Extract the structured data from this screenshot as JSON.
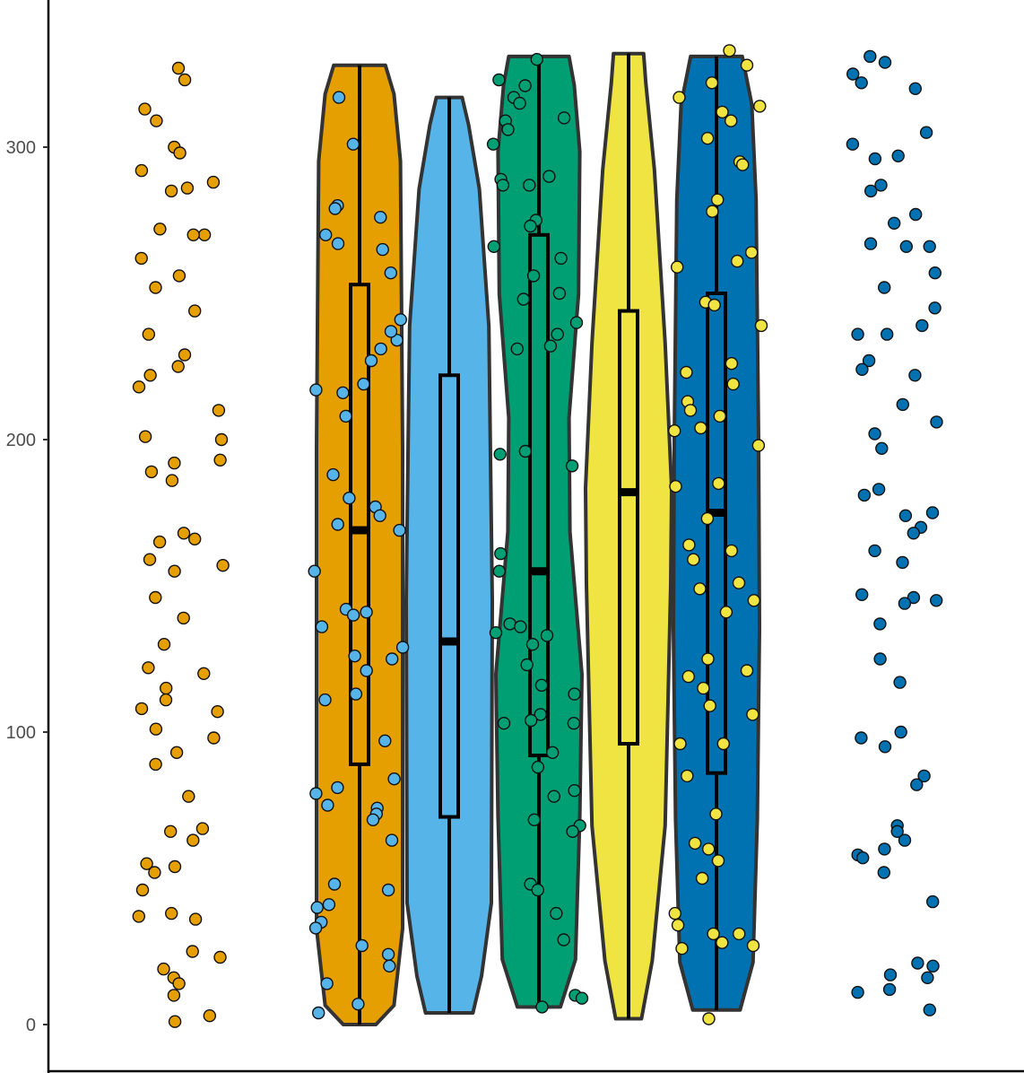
{
  "chart_data": {
    "type": "violin",
    "title": "",
    "xlabel": "",
    "ylabel": "",
    "ylim": [
      -7,
      350
    ],
    "y_ticks": [
      0,
      100,
      200,
      300
    ],
    "y_tick_labels": [
      "0",
      "100",
      "200",
      "300"
    ],
    "grid": false,
    "legend": "none",
    "colors": {
      "orange": "#E69F00",
      "skyblue": "#56B4E9",
      "green": "#009E73",
      "yellow": "#F0E442",
      "blue": "#0072B2",
      "outline": "#333333",
      "axis": "#000000"
    },
    "violins": [
      {
        "color": "orange",
        "min": 0,
        "max": 328,
        "q1": 89,
        "median": 169,
        "q3": 253
      },
      {
        "color": "skyblue",
        "min": 4,
        "max": 317,
        "q1": 71,
        "median": 131,
        "q3": 222
      },
      {
        "color": "green",
        "min": 6,
        "max": 331,
        "q1": 92,
        "median": 155,
        "q3": 270
      },
      {
        "color": "yellow",
        "min": 2,
        "max": 332,
        "q1": 96,
        "median": 182,
        "q3": 244
      },
      {
        "color": "blue",
        "min": 5,
        "max": 331,
        "q1": 86,
        "median": 175,
        "q3": 250
      }
    ],
    "point_groups": [
      {
        "color": "orange",
        "y": [
          327,
          323,
          313,
          309,
          300,
          298,
          292,
          288,
          286,
          285,
          272,
          270,
          270,
          262,
          256,
          252,
          244,
          236,
          229,
          225,
          222,
          218,
          210,
          200,
          201,
          192,
          193,
          189,
          186,
          168,
          166,
          165,
          159,
          157,
          155,
          146,
          139,
          130,
          122,
          120,
          115,
          111,
          108,
          107,
          101,
          98,
          93,
          89,
          78,
          66,
          67,
          63,
          55,
          52,
          54,
          46,
          37,
          38,
          36,
          25,
          23,
          19,
          16,
          14,
          10,
          3,
          1
        ]
      },
      {
        "color": "skyblue",
        "y": [
          301,
          280,
          279,
          276,
          270,
          267,
          265,
          257,
          241,
          234,
          237,
          231,
          227,
          219,
          217,
          216,
          208,
          188,
          180,
          177,
          174,
          171,
          169,
          155,
          142,
          141,
          140,
          136,
          129,
          126,
          125,
          121,
          113,
          111,
          97,
          84,
          81,
          79,
          75,
          74,
          72,
          70,
          63,
          48,
          46,
          41,
          40,
          35,
          33,
          27,
          24,
          20,
          14,
          7,
          4,
          317
        ]
      },
      {
        "color": "green",
        "y": [
          330,
          323,
          321,
          317,
          315,
          310,
          309,
          306,
          301,
          290,
          289,
          287,
          287,
          275,
          273,
          266,
          262,
          256,
          250,
          248,
          240,
          236,
          232,
          231,
          196,
          195,
          191,
          161,
          155,
          137,
          136,
          134,
          133,
          130,
          123,
          116,
          113,
          106,
          104,
          103,
          103,
          93,
          88,
          80,
          78,
          70,
          68,
          66,
          48,
          46,
          38,
          29,
          10,
          6,
          9
        ]
      },
      {
        "color": "yellow",
        "y": [
          333,
          328,
          322,
          317,
          314,
          312,
          309,
          303,
          295,
          294,
          282,
          278,
          264,
          261,
          259,
          247,
          246,
          239,
          226,
          223,
          219,
          213,
          210,
          208,
          204,
          203,
          198,
          185,
          184,
          173,
          164,
          162,
          159,
          151,
          149,
          145,
          141,
          125,
          121,
          119,
          115,
          109,
          106,
          96,
          96,
          85,
          72,
          62,
          60,
          56,
          50,
          38,
          34,
          31,
          31,
          28,
          27,
          26,
          2
        ]
      },
      {
        "color": "blue",
        "y": [
          331,
          329,
          325,
          322,
          320,
          305,
          301,
          297,
          296,
          287,
          285,
          277,
          274,
          267,
          266,
          266,
          257,
          252,
          245,
          239,
          236,
          236,
          227,
          224,
          222,
          212,
          206,
          202,
          197,
          183,
          181,
          175,
          174,
          170,
          168,
          162,
          158,
          147,
          146,
          145,
          144,
          137,
          125,
          117,
          100,
          98,
          95,
          85,
          82,
          68,
          66,
          63,
          60,
          58,
          57,
          52,
          42,
          21,
          20,
          17,
          16,
          12,
          11,
          5
        ]
      }
    ]
  }
}
